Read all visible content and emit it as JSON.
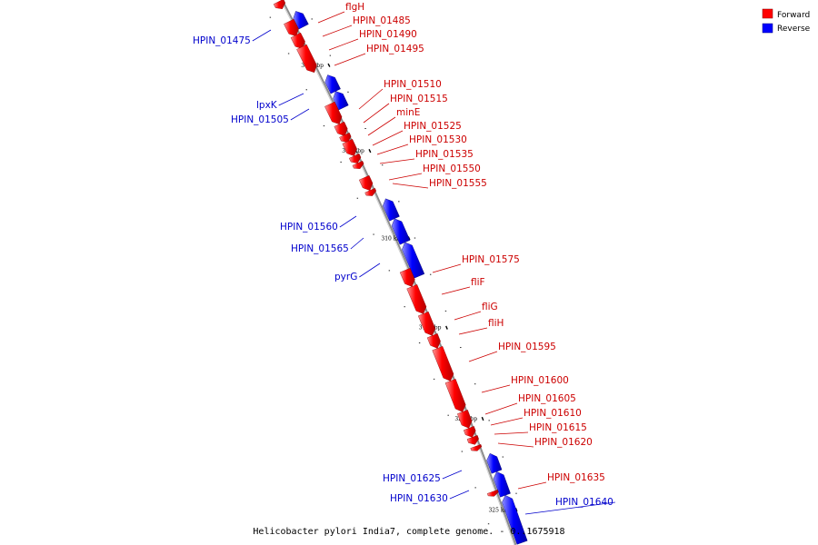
{
  "legend": [
    {
      "label": "Forward",
      "color": "#ff0000"
    },
    {
      "label": "Reverse",
      "color": "#0000ff"
    }
  ],
  "caption": "Helicobacter pylori India7, complete genome. - 0..1675918",
  "scale_ticks": [
    {
      "label": "300 kbp",
      "kbp": 300
    },
    {
      "label": "305 kbp",
      "kbp": 305
    },
    {
      "label": "310 kbp",
      "kbp": 310
    },
    {
      "label": "315 kbp",
      "kbp": 315
    },
    {
      "label": "320 kbp",
      "kbp": 320
    },
    {
      "label": "325 kbp",
      "kbp": 325
    }
  ],
  "genes": [
    {
      "name": "flgH",
      "strand": "forward"
    },
    {
      "name": "HPIN_01475",
      "strand": "reverse"
    },
    {
      "name": "HPIN_01485",
      "strand": "forward"
    },
    {
      "name": "HPIN_01490",
      "strand": "forward"
    },
    {
      "name": "HPIN_01495",
      "strand": "forward"
    },
    {
      "name": "lpxK",
      "strand": "reverse"
    },
    {
      "name": "HPIN_01505",
      "strand": "reverse"
    },
    {
      "name": "HPIN_01510",
      "strand": "forward"
    },
    {
      "name": "HPIN_01515",
      "strand": "forward"
    },
    {
      "name": "minE",
      "strand": "forward"
    },
    {
      "name": "HPIN_01525",
      "strand": "forward"
    },
    {
      "name": "HPIN_01530",
      "strand": "forward"
    },
    {
      "name": "HPIN_01535",
      "strand": "forward"
    },
    {
      "name": "HPIN_01550",
      "strand": "forward"
    },
    {
      "name": "HPIN_01555",
      "strand": "forward"
    },
    {
      "name": "HPIN_01560",
      "strand": "reverse"
    },
    {
      "name": "HPIN_01565",
      "strand": "reverse"
    },
    {
      "name": "pyrG",
      "strand": "reverse"
    },
    {
      "name": "HPIN_01575",
      "strand": "forward"
    },
    {
      "name": "fliF",
      "strand": "forward"
    },
    {
      "name": "fliG",
      "strand": "forward"
    },
    {
      "name": "fliH",
      "strand": "forward"
    },
    {
      "name": "HPIN_01595",
      "strand": "forward"
    },
    {
      "name": "HPIN_01600",
      "strand": "forward"
    },
    {
      "name": "HPIN_01605",
      "strand": "forward"
    },
    {
      "name": "HPIN_01610",
      "strand": "forward"
    },
    {
      "name": "HPIN_01615",
      "strand": "forward"
    },
    {
      "name": "HPIN_01620",
      "strand": "forward"
    },
    {
      "name": "HPIN_01625",
      "strand": "reverse"
    },
    {
      "name": "HPIN_01630",
      "strand": "reverse"
    },
    {
      "name": "HPIN_01635",
      "strand": "forward"
    },
    {
      "name": "HPIN_01640",
      "strand": "reverse"
    }
  ]
}
